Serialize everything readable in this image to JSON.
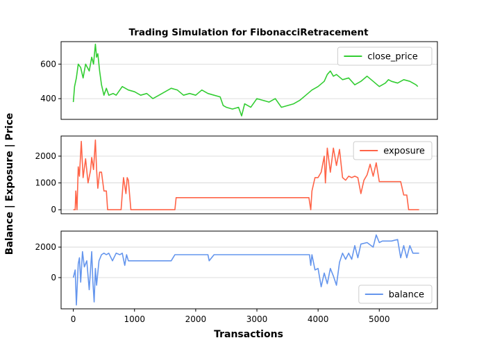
{
  "chart_data": {
    "type": "line",
    "title": "Trading Simulation for FibonacciRetracement",
    "xlabel": "Transactions",
    "ylabel": "Balance | Exposure | Price",
    "xlim": [
      -200,
      5950
    ],
    "xticks": [
      0,
      1000,
      2000,
      3000,
      4000,
      5000
    ],
    "grid": "y",
    "panels": [
      {
        "series_name": "close_price",
        "color": "#32cd32",
        "ylim": [
          280,
          730
        ],
        "yticks": [
          400,
          600
        ],
        "legend": "upper right",
        "x": [
          0,
          20,
          50,
          80,
          120,
          160,
          200,
          260,
          300,
          330,
          360,
          380,
          400,
          430,
          460,
          500,
          540,
          580,
          650,
          700,
          800,
          900,
          1000,
          1100,
          1200,
          1300,
          1400,
          1500,
          1600,
          1700,
          1800,
          1900,
          2000,
          2100,
          2200,
          2300,
          2400,
          2450,
          2500,
          2600,
          2700,
          2750,
          2800,
          2900,
          3000,
          3100,
          3200,
          3300,
          3400,
          3500,
          3600,
          3700,
          3800,
          3900,
          4000,
          4100,
          4150,
          4200,
          4250,
          4300,
          4400,
          4500,
          4600,
          4700,
          4800,
          4900,
          5000,
          5100,
          5150,
          5200,
          5300,
          5400,
          5500,
          5600,
          5630
        ],
        "y": [
          380,
          470,
          520,
          600,
          580,
          520,
          600,
          560,
          640,
          600,
          715,
          640,
          660,
          560,
          480,
          420,
          460,
          420,
          430,
          420,
          470,
          450,
          440,
          420,
          430,
          400,
          420,
          440,
          460,
          450,
          420,
          430,
          420,
          450,
          430,
          420,
          410,
          360,
          350,
          340,
          350,
          300,
          370,
          350,
          400,
          390,
          380,
          400,
          350,
          360,
          370,
          390,
          420,
          450,
          470,
          500,
          540,
          560,
          530,
          540,
          510,
          520,
          480,
          500,
          530,
          500,
          470,
          490,
          510,
          500,
          490,
          510,
          500,
          480,
          470
        ]
      },
      {
        "series_name": "exposure",
        "color": "#ff6347",
        "ylim": [
          -150,
          2750
        ],
        "yticks": [
          0,
          1000,
          2000
        ],
        "legend": "upper right",
        "x": [
          0,
          30,
          40,
          60,
          80,
          100,
          130,
          160,
          200,
          240,
          280,
          300,
          330,
          360,
          380,
          400,
          430,
          460,
          500,
          540,
          560,
          600,
          640,
          700,
          740,
          780,
          820,
          860,
          880,
          900,
          940,
          960,
          1000,
          1660,
          1680,
          2200,
          2220,
          3850,
          3880,
          3900,
          3950,
          4000,
          4050,
          4100,
          4120,
          4150,
          4200,
          4250,
          4300,
          4350,
          4400,
          4450,
          4500,
          4550,
          4600,
          4650,
          4700,
          4750,
          4800,
          4850,
          4900,
          4950,
          5000,
          5050,
          5100,
          5150,
          5200,
          5250,
          5300,
          5350,
          5400,
          5450,
          5480,
          5500,
          5550,
          5600,
          5650
        ],
        "y": [
          0,
          0,
          700,
          0,
          1600,
          1250,
          2550,
          1200,
          1900,
          1000,
          1450,
          1950,
          1500,
          2600,
          1500,
          800,
          1400,
          1400,
          700,
          700,
          0,
          0,
          0,
          0,
          0,
          0,
          1200,
          600,
          1200,
          1100,
          0,
          0,
          0,
          0,
          450,
          450,
          450,
          450,
          0,
          700,
          1200,
          1200,
          1400,
          2000,
          1000,
          2300,
          1400,
          2300,
          1650,
          2250,
          1200,
          1100,
          1250,
          1200,
          1250,
          1200,
          600,
          1100,
          1300,
          1700,
          1250,
          1750,
          1050,
          1050,
          1050,
          1050,
          1050,
          1050,
          1050,
          1050,
          550,
          550,
          0,
          0,
          0,
          0,
          0
        ]
      },
      {
        "series_name": "balance",
        "color": "#6495ed",
        "ylim": [
          -2050,
          3050
        ],
        "yticks": [
          0,
          2000
        ],
        "legend": "lower right",
        "x": [
          0,
          30,
          50,
          80,
          100,
          120,
          150,
          180,
          220,
          260,
          300,
          320,
          340,
          360,
          380,
          420,
          460,
          500,
          540,
          580,
          640,
          700,
          760,
          800,
          840,
          870,
          900,
          940,
          1000,
          1600,
          1660,
          1700,
          2200,
          2220,
          2300,
          2600,
          3000,
          3400,
          3800,
          3860,
          3880,
          3900,
          3950,
          4000,
          4050,
          4100,
          4150,
          4200,
          4250,
          4300,
          4350,
          4400,
          4450,
          4500,
          4550,
          4600,
          4650,
          4700,
          4800,
          4900,
          4950,
          5000,
          5050,
          5100,
          5150,
          5200,
          5250,
          5300,
          5350,
          5400,
          5450,
          5500,
          5550,
          5600,
          5650
        ],
        "y": [
          0,
          500,
          -1800,
          900,
          1300,
          -300,
          1700,
          700,
          1100,
          -800,
          1700,
          -300,
          -1600,
          600,
          -500,
          1100,
          1500,
          1600,
          1500,
          1600,
          1100,
          1600,
          1500,
          1600,
          800,
          1500,
          1100,
          1100,
          1100,
          1100,
          1500,
          1500,
          1500,
          1100,
          1500,
          1500,
          1500,
          1500,
          1500,
          1500,
          800,
          1500,
          500,
          600,
          -600,
          300,
          -400,
          600,
          100,
          -500,
          1000,
          1600,
          1200,
          1600,
          1200,
          2100,
          1300,
          2200,
          2300,
          2000,
          2800,
          2300,
          2400,
          2400,
          2400,
          2400,
          2450,
          2500,
          1300,
          2100,
          1300,
          2100,
          1600,
          1600,
          1600
        ]
      }
    ]
  }
}
